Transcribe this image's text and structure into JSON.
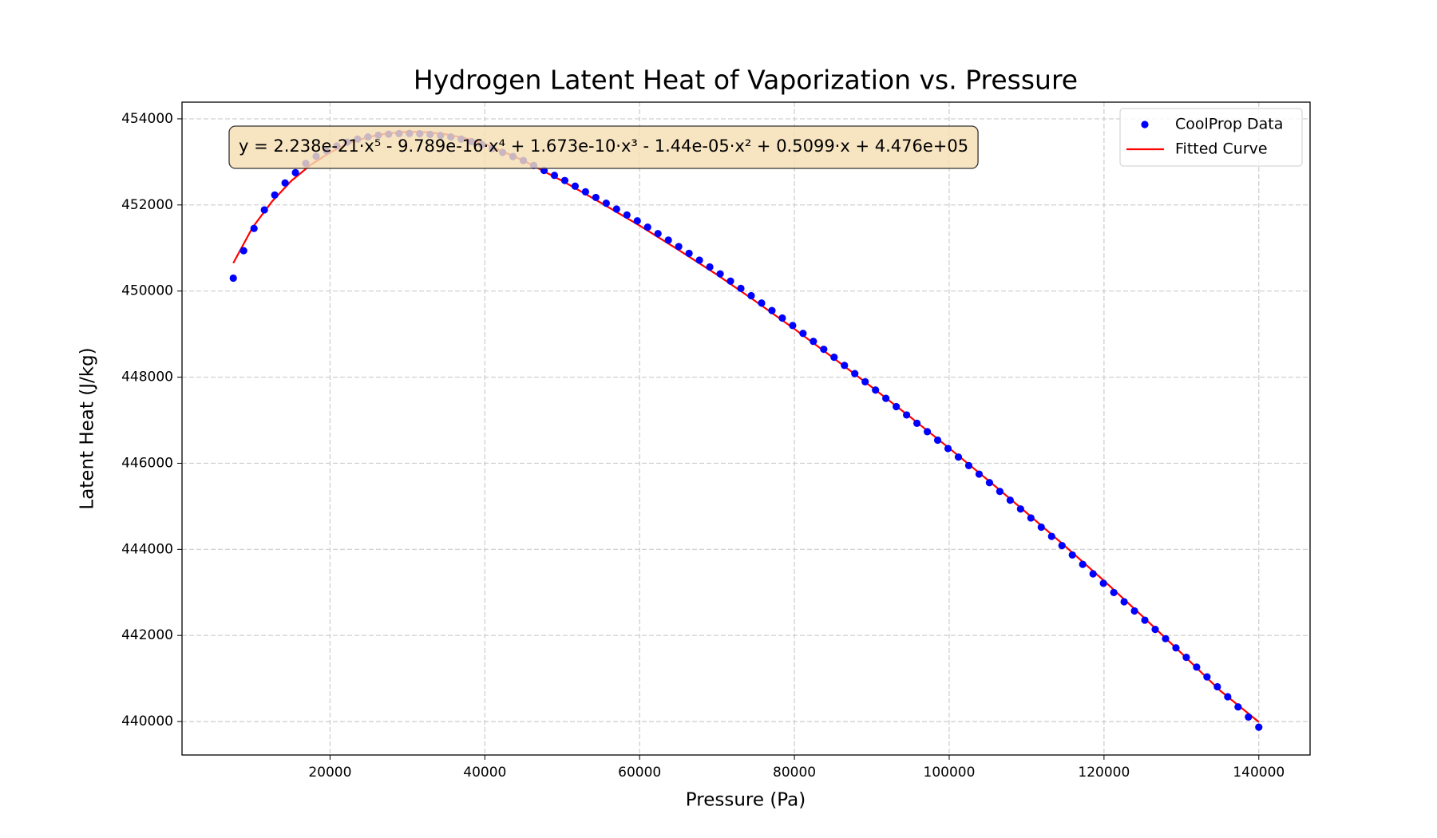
{
  "chart_data": {
    "type": "scatter",
    "title": "Hydrogen Latent Heat of Vaporization vs. Pressure",
    "x_label": "Pressure (Pa)",
    "y_label": "Latent Heat (J/kg)",
    "annotation": "y = 2.238e-21·x⁵ - 9.789e-16·x⁴ + 1.673e-10·x³ - 1.44e-05·x² + 0.5099·x + 4.476e+05",
    "xlim": [
      875,
      146625
    ],
    "ylim": [
      439223,
      454388
    ],
    "xticks": [
      20000,
      40000,
      60000,
      80000,
      100000,
      120000,
      140000
    ],
    "yticks": [
      440000,
      442000,
      444000,
      446000,
      448000,
      450000,
      452000,
      454000
    ],
    "grid": true,
    "legend": "upper right",
    "series": [
      {
        "name": "CoolProp Data",
        "type": "scatter",
        "color": "#0000ff",
        "x": [
          7500,
          8838,
          10177,
          11515,
          12854,
          14192,
          15530,
          16869,
          18207,
          19545,
          20884,
          22222,
          23561,
          24899,
          26237,
          27576,
          28914,
          30253,
          31591,
          32929,
          34268,
          35606,
          36944,
          38283,
          39621,
          40960,
          42298,
          43636,
          44975,
          46313,
          47652,
          48990,
          50328,
          51667,
          53005,
          54343,
          55682,
          57020,
          58359,
          59697,
          61035,
          62374,
          63712,
          65051,
          66389,
          67727,
          69066,
          70404,
          71742,
          73081,
          74419,
          75758,
          77096,
          78434,
          79773,
          81111,
          82449,
          83788,
          85126,
          86465,
          87803,
          89141,
          90480,
          91818,
          93157,
          94495,
          95833,
          97172,
          98510,
          99848,
          101187,
          102525,
          103864,
          105202,
          106540,
          107879,
          109217,
          110556,
          111894,
          113232,
          114571,
          115909,
          117247,
          118586,
          119924,
          121263,
          122601,
          123939,
          125278,
          126616,
          127955,
          129293,
          130631,
          131970,
          133308,
          134646,
          135985,
          137323,
          138662,
          140000
        ],
        "values": [
          450300,
          450937,
          451455,
          451886,
          452231,
          452512,
          452749,
          452965,
          453130,
          453260,
          453370,
          453460,
          453530,
          453580,
          453620,
          453645,
          453658,
          453660,
          453655,
          453640,
          453615,
          453580,
          453530,
          453470,
          453400,
          453313,
          453219,
          453125,
          453032,
          452917,
          452802,
          452687,
          452568,
          452437,
          452305,
          452174,
          452040,
          451904,
          451767,
          451631,
          451484,
          451334,
          451184,
          451034,
          450876,
          450718,
          450560,
          450399,
          450230,
          450062,
          449893,
          449721,
          449547,
          449373,
          449199,
          449016,
          448832,
          448647,
          448462,
          448272,
          448082,
          447892,
          447700,
          447508,
          447315,
          447122,
          446928,
          446733,
          446537,
          446342,
          446144,
          445946,
          445748,
          445549,
          445345,
          445142,
          444938,
          444730,
          444516,
          444302,
          444088,
          443870,
          443651,
          443431,
          443212,
          442997,
          442783,
          442569,
          442355,
          442141,
          441926,
          441712,
          441492,
          441264,
          441037,
          440809,
          440576,
          440340,
          440105,
          439870
        ]
      },
      {
        "name": "Fitted Curve",
        "type": "line",
        "color": "#ff0000",
        "x": [
          7500,
          10000,
          12500,
          15000,
          17500,
          20000,
          22500,
          25000,
          27500,
          30000,
          32500,
          35000,
          37500,
          40000,
          45000,
          50000,
          55000,
          60000,
          65000,
          70000,
          75000,
          80000,
          85000,
          90000,
          95000,
          100000,
          105000,
          110000,
          115000,
          120000,
          125000,
          130000,
          135000,
          140000
        ],
        "values": [
          450650,
          451480,
          452080,
          452560,
          452930,
          453220,
          453440,
          453580,
          453665,
          453700,
          453690,
          453640,
          453550,
          453420,
          453030,
          452560,
          452050,
          451520,
          450960,
          450380,
          449760,
          449120,
          448450,
          447770,
          447070,
          446350,
          445610,
          444850,
          444070,
          443270,
          442440,
          441590,
          440720,
          439990
        ]
      }
    ]
  }
}
